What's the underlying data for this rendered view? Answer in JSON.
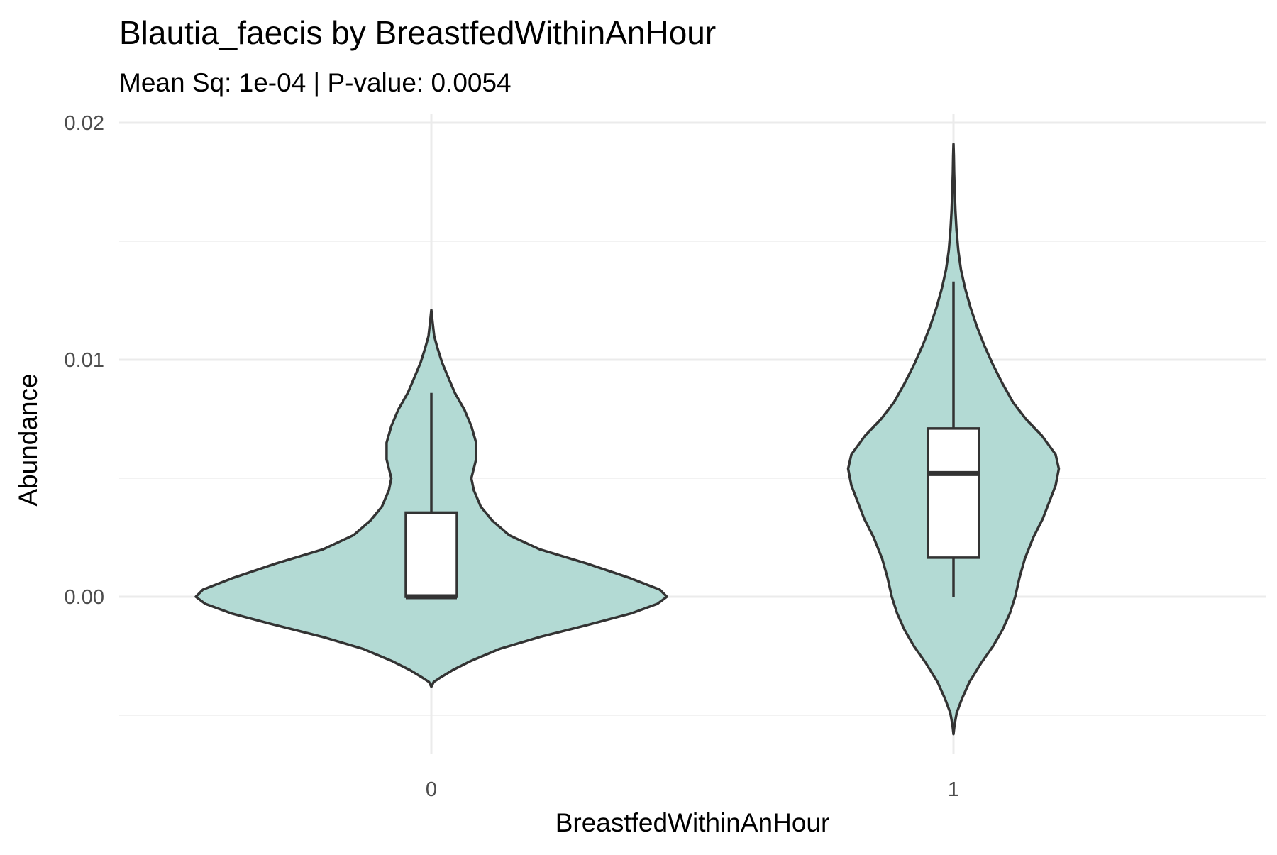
{
  "chart_data": {
    "type": "violin",
    "title": "Blautia_faecis by BreastfedWithinAnHour",
    "subtitle": "Mean Sq: 1e-04 | P-value: 0.0054",
    "xlabel": "BreastfedWithinAnHour",
    "ylabel": "Abundance",
    "ylim": [
      -0.0058,
      0.0201
    ],
    "yticks": [
      0.0,
      0.01,
      0.02
    ],
    "ytick_labels": [
      "0.00",
      "0.01",
      "0.02"
    ],
    "y_minor_ticks": [
      -0.005,
      0.005,
      0.015
    ],
    "categories": [
      "0",
      "1"
    ],
    "grid": true,
    "colors": {
      "violin_fill": "#b3dad4",
      "outline": "#333333",
      "box_fill": "#ffffff",
      "grid_major": "#ebebeb",
      "grid_minor": "#f2f2f2",
      "text": "#000000",
      "tick_text": "#4d4d4d"
    },
    "groups": [
      {
        "category": "0",
        "box": {
          "min": 0.0,
          "q1": 0.0,
          "median": 0.0,
          "q3": 0.00355,
          "whisker_max": 0.0086
        },
        "density": [
          [
            -0.0038,
            0.0
          ],
          [
            -0.0036,
            0.01
          ],
          [
            -0.0034,
            0.04
          ],
          [
            -0.0031,
            0.09
          ],
          [
            -0.0027,
            0.17
          ],
          [
            -0.0022,
            0.29
          ],
          [
            -0.0017,
            0.46
          ],
          [
            -0.0012,
            0.66
          ],
          [
            -0.0007,
            0.85
          ],
          [
            -0.0003,
            0.96
          ],
          [
            0.0,
            1.0
          ],
          [
            0.0003,
            0.97
          ],
          [
            0.0008,
            0.84
          ],
          [
            0.0014,
            0.66
          ],
          [
            0.002,
            0.46
          ],
          [
            0.0026,
            0.33
          ],
          [
            0.0032,
            0.26
          ],
          [
            0.0038,
            0.21
          ],
          [
            0.0045,
            0.18
          ],
          [
            0.005,
            0.17
          ],
          [
            0.0054,
            0.18
          ],
          [
            0.0058,
            0.19
          ],
          [
            0.0065,
            0.19
          ],
          [
            0.0072,
            0.17
          ],
          [
            0.0079,
            0.14
          ],
          [
            0.0086,
            0.1
          ],
          [
            0.0093,
            0.07
          ],
          [
            0.0099,
            0.045
          ],
          [
            0.0105,
            0.026
          ],
          [
            0.011,
            0.012
          ],
          [
            0.0116,
            0.005
          ],
          [
            0.0121,
            0.0
          ]
        ]
      },
      {
        "category": "1",
        "box": {
          "min": 0.0,
          "q1": 0.00165,
          "median": 0.0052,
          "q3": 0.0071,
          "whisker_max": 0.0133
        },
        "density": [
          [
            -0.0058,
            0.0
          ],
          [
            -0.0054,
            0.01
          ],
          [
            -0.0049,
            0.03
          ],
          [
            -0.0043,
            0.08
          ],
          [
            -0.0036,
            0.15
          ],
          [
            -0.0028,
            0.26
          ],
          [
            -0.0021,
            0.37
          ],
          [
            -0.0014,
            0.46
          ],
          [
            -0.0007,
            0.53
          ],
          [
            0.0,
            0.58
          ],
          [
            0.0008,
            0.62
          ],
          [
            0.0016,
            0.67
          ],
          [
            0.0025,
            0.75
          ],
          [
            0.0033,
            0.84
          ],
          [
            0.004,
            0.9
          ],
          [
            0.0047,
            0.96
          ],
          [
            0.0054,
            0.99
          ],
          [
            0.006,
            0.96
          ],
          [
            0.0068,
            0.83
          ],
          [
            0.0075,
            0.68
          ],
          [
            0.0082,
            0.56
          ],
          [
            0.009,
            0.46
          ],
          [
            0.0098,
            0.37
          ],
          [
            0.0106,
            0.29
          ],
          [
            0.0114,
            0.22
          ],
          [
            0.0122,
            0.16
          ],
          [
            0.013,
            0.11
          ],
          [
            0.0138,
            0.07
          ],
          [
            0.0146,
            0.045
          ],
          [
            0.0155,
            0.028
          ],
          [
            0.0163,
            0.018
          ],
          [
            0.0171,
            0.011
          ],
          [
            0.0179,
            0.006
          ],
          [
            0.0186,
            0.003
          ],
          [
            0.0191,
            0.0
          ]
        ]
      }
    ]
  }
}
